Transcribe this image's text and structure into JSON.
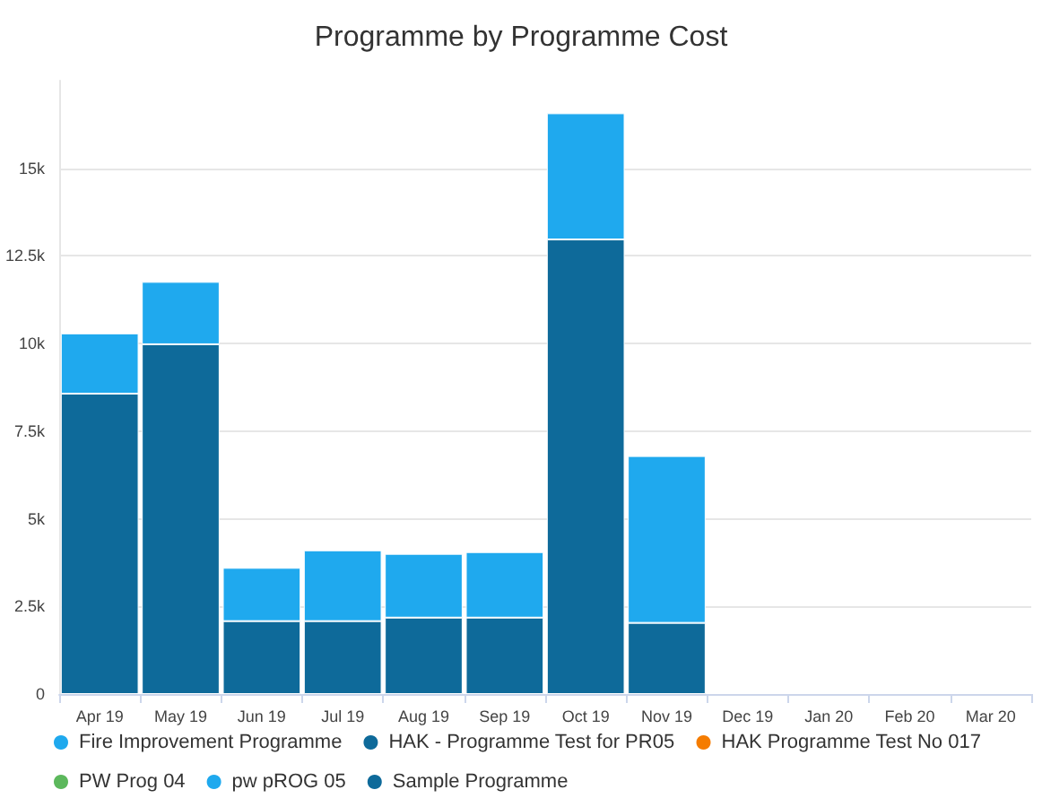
{
  "chart_data": {
    "type": "bar",
    "title": "Programme by Programme Cost",
    "stacked": true,
    "grid": "y",
    "legend": "bottom",
    "categories": [
      "Apr 19",
      "May 19",
      "Jun 19",
      "Jul 19",
      "Aug 19",
      "Sep 19",
      "Oct 19",
      "Nov 19",
      "Dec 19",
      "Jan 20",
      "Feb 20",
      "Mar 20"
    ],
    "ylim": [
      0,
      17500
    ],
    "yticks": [
      0,
      {
        "value": 2500,
        "label": "2.5k"
      },
      {
        "value": 5000,
        "label": "5k"
      },
      {
        "value": 7500,
        "label": "7.5k"
      },
      {
        "value": 10000,
        "label": "10k"
      },
      {
        "value": 12500,
        "label": "12.5k"
      },
      {
        "value": 15000,
        "label": "15k"
      }
    ],
    "series": [
      {
        "name": "Fire Improvement Programme",
        "color": "#1fa9ee",
        "values": [
          null,
          null,
          null,
          null,
          null,
          null,
          null,
          null,
          null,
          null,
          null,
          null
        ]
      },
      {
        "name": "HAK - Programme Test for PR05",
        "color": "#0e6a9a",
        "values": [
          8570,
          9980,
          2080,
          2080,
          2180,
          2180,
          12970,
          2030,
          null,
          null,
          null,
          null
        ]
      },
      {
        "name": "HAK Programme Test No 017",
        "color": "#f57c00",
        "values": [
          null,
          null,
          null,
          null,
          null,
          null,
          null,
          null,
          null,
          null,
          null,
          null
        ]
      },
      {
        "name": "PW Prog 04",
        "color": "#5cb85c",
        "values": [
          null,
          null,
          null,
          null,
          null,
          null,
          null,
          null,
          null,
          null,
          null,
          null
        ]
      },
      {
        "name": "pw pROG 05",
        "color": "#1fa9ee",
        "values": [
          1720,
          1780,
          1520,
          2020,
          1820,
          1870,
          3600,
          4760,
          null,
          null,
          null,
          null
        ]
      },
      {
        "name": "Sample Programme",
        "color": "#0e6a9a",
        "values": [
          null,
          null,
          null,
          null,
          null,
          null,
          null,
          null,
          null,
          null,
          null,
          null
        ]
      }
    ]
  }
}
